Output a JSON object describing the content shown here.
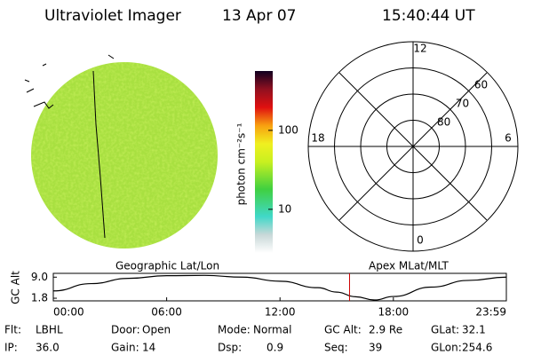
{
  "header": {
    "title": "Ultraviolet Imager",
    "date": "13 Apr 07",
    "time": "15:40:44 UT"
  },
  "colorbar": {
    "label": "photon cm⁻²s⁻¹",
    "log": true,
    "lim": [
      2.8,
      565
    ],
    "ticks": [
      10,
      100
    ]
  },
  "polar": {
    "mlt_ticks": [
      12,
      18,
      6,
      0
    ],
    "lat_rings": [
      80,
      70,
      60
    ],
    "lat_min": 50
  },
  "chart_data": {
    "type": "line",
    "ylabel": "GC Alt",
    "left_title": "Geographic Lat/Lon",
    "right_title": "Apex MLat/MLT",
    "x": [
      0,
      2,
      4,
      6,
      8,
      10,
      12,
      14,
      15,
      16,
      17,
      18,
      20,
      22,
      23.98
    ],
    "values": [
      4.3,
      6.8,
      8.6,
      9.5,
      9.6,
      9.0,
      7.6,
      5.4,
      3.9,
      2.3,
      1.2,
      2.4,
      5.6,
      7.9,
      9.0
    ],
    "color": "#000000",
    "marker_x": 15.68,
    "marker_color": "#cc0000",
    "xlim": [
      0,
      23.98
    ],
    "xticks": [
      {
        "value": 0,
        "label": "00:00"
      },
      {
        "value": 6,
        "label": "06:00"
      },
      {
        "value": 12,
        "label": "12:00"
      },
      {
        "value": 18,
        "label": "18:00"
      },
      {
        "value": 23.98,
        "label": "23:59"
      }
    ],
    "ylim": [
      0.9,
      10.3
    ],
    "yticks": [
      1.8,
      {
        "value": 9,
        "label": "9.0"
      }
    ]
  },
  "info": [
    [
      [
        "Flt:",
        "LBHL"
      ],
      [
        "Door:",
        "Open"
      ],
      [
        "Mode:",
        "Normal"
      ],
      [
        "GC Alt:",
        "2.9 Re"
      ],
      [
        "GLat:",
        "32.1"
      ]
    ],
    [
      [
        "IP:",
        "36.0"
      ],
      [
        "Gain:",
        "14"
      ],
      [
        "Dsp:",
        "0.9"
      ],
      [
        "Seq:",
        "39"
      ],
      [
        "GLon:",
        "254.6"
      ]
    ]
  ]
}
